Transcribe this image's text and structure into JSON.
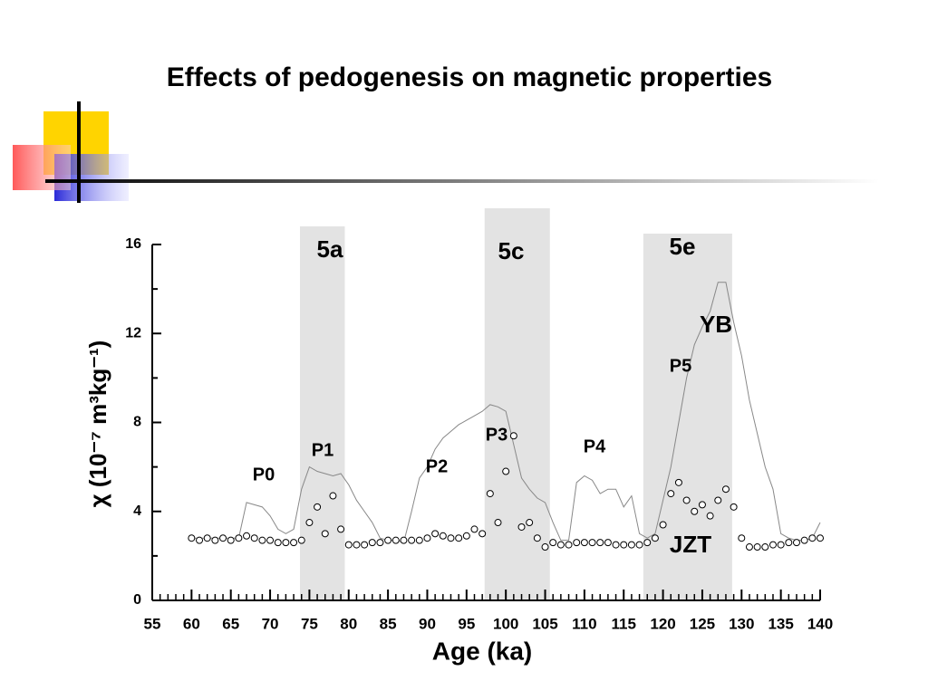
{
  "chart_data": {
    "type": "line",
    "title": "Effects of pedogenesis on magnetic properties",
    "x_label": "Age (ka)",
    "y_label": "χ (10⁻⁷ m³kg⁻¹)",
    "xlim": [
      55,
      140
    ],
    "xticks": [
      55,
      60,
      65,
      70,
      75,
      80,
      85,
      90,
      95,
      100,
      105,
      110,
      115,
      120,
      125,
      130,
      135,
      140
    ],
    "xminorticks": [
      56,
      57,
      58,
      59,
      61,
      62,
      63,
      64,
      66,
      67,
      68,
      69,
      71,
      72,
      73,
      74,
      76,
      77,
      78,
      79,
      81,
      82,
      83,
      84,
      86,
      87,
      88,
      89,
      91,
      92,
      93,
      94,
      96,
      97,
      98,
      99,
      101,
      102,
      103,
      104,
      106,
      107,
      108,
      109,
      111,
      112,
      113,
      114,
      116,
      117,
      118,
      119,
      121,
      122,
      123,
      124,
      126,
      127,
      128,
      129,
      131,
      132,
      133,
      134,
      136,
      137,
      138,
      139
    ],
    "ylim": [
      0,
      16
    ],
    "yticks": [
      0,
      4,
      8,
      12,
      16
    ],
    "yminorticks": [
      2,
      6,
      10,
      14
    ],
    "bands": [
      {
        "label": "5a",
        "start": 73.8,
        "end": 79.5
      },
      {
        "label": "5c",
        "start": 97.3,
        "end": 105.6
      },
      {
        "label": "5e",
        "start": 117.5,
        "end": 128.8
      }
    ],
    "band_color": "#e3e3e3",
    "annotations": [
      "P0",
      "P1",
      "P2",
      "P3",
      "P4",
      "P5",
      "YB",
      "JZT"
    ],
    "x": [
      60,
      61,
      62,
      63,
      64,
      65,
      66,
      67,
      68,
      69,
      70,
      71,
      72,
      73,
      74,
      75,
      76,
      77,
      78,
      79,
      80,
      81,
      82,
      83,
      84,
      85,
      86,
      87,
      88,
      89,
      90,
      91,
      92,
      93,
      94,
      95,
      96,
      97,
      98,
      99,
      100,
      101,
      102,
      103,
      104,
      105,
      106,
      107,
      108,
      109,
      110,
      111,
      112,
      113,
      114,
      115,
      116,
      117,
      118,
      119,
      120,
      121,
      122,
      123,
      124,
      125,
      126,
      127,
      128,
      129,
      130,
      131,
      132,
      133,
      134,
      135,
      136,
      137,
      138,
      139,
      140
    ],
    "series": [
      {
        "style": "line",
        "color": "#888888",
        "values": [
          2.8,
          2.8,
          2.8,
          2.8,
          2.8,
          2.8,
          2.8,
          4.4,
          4.3,
          4.2,
          3.8,
          3.2,
          3.0,
          3.2,
          5.0,
          6.0,
          5.8,
          5.7,
          5.6,
          5.7,
          5.2,
          4.5,
          4.0,
          3.5,
          2.8,
          2.7,
          2.7,
          2.6,
          4.0,
          5.5,
          6.0,
          6.8,
          7.3,
          7.6,
          7.9,
          8.1,
          8.3,
          8.5,
          8.8,
          8.7,
          8.5,
          7.0,
          5.5,
          5.0,
          4.6,
          4.4,
          3.5,
          2.7,
          2.7,
          5.3,
          5.6,
          5.4,
          4.8,
          5.0,
          5.0,
          4.2,
          4.7,
          3.0,
          2.8,
          3.0,
          4.5,
          6.0,
          8.0,
          10.0,
          11.5,
          12.3,
          13.0,
          14.3,
          14.3,
          12.5,
          11.0,
          9.0,
          7.5,
          6.0,
          5.0,
          3.0,
          2.8,
          2.7,
          2.7,
          2.8,
          3.5
        ]
      },
      {
        "style": "circles",
        "color": "#000000",
        "values": [
          2.8,
          2.7,
          2.8,
          2.7,
          2.8,
          2.7,
          2.8,
          2.9,
          2.8,
          2.7,
          2.7,
          2.6,
          2.6,
          2.6,
          2.7,
          3.5,
          4.2,
          3.0,
          4.7,
          3.2,
          2.5,
          2.5,
          2.5,
          2.6,
          2.6,
          2.7,
          2.7,
          2.7,
          2.7,
          2.7,
          2.8,
          3.0,
          2.9,
          2.8,
          2.8,
          2.9,
          3.2,
          3.0,
          4.8,
          3.5,
          5.8,
          7.4,
          3.3,
          3.5,
          2.8,
          2.4,
          2.6,
          2.5,
          2.5,
          2.6,
          2.6,
          2.6,
          2.6,
          2.6,
          2.5,
          2.5,
          2.5,
          2.5,
          2.6,
          2.8,
          3.4,
          4.8,
          5.3,
          4.5,
          4.0,
          4.3,
          3.8,
          4.5,
          5.0,
          4.2,
          2.8,
          2.4,
          2.4,
          2.4,
          2.5,
          2.5,
          2.6,
          2.6,
          2.7,
          2.8,
          2.8
        ]
      }
    ]
  }
}
